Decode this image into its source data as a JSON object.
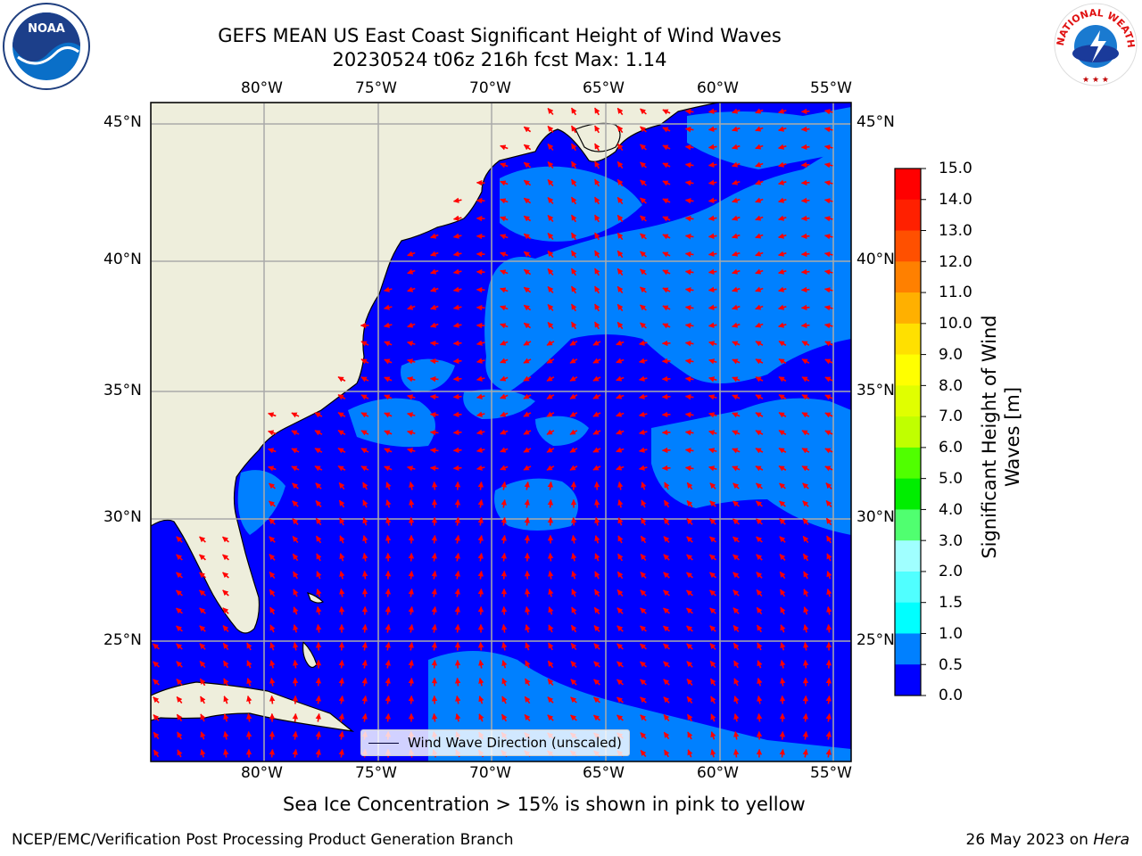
{
  "title": {
    "line1": "GEFS MEAN US East Coast Significant Height of Wind Waves",
    "line2": "20230524 t06z 216h fcst   Max: 1.14"
  },
  "map": {
    "lon_range": [
      -85,
      -54.2
    ],
    "lat_range": [
      20.5,
      46
    ],
    "lon_ticks": [
      "80°W",
      "75°W",
      "70°W",
      "65°W",
      "60°W",
      "55°W"
    ],
    "lat_ticks": [
      "45°N",
      "40°N",
      "35°N",
      "30°N",
      "25°N"
    ],
    "land_color": "#eeeedc",
    "ocean_low_color": "#0000ff",
    "ocean_mid_color": "#0080ff",
    "arrow_color": "#ff0000",
    "grid": true
  },
  "colorbar": {
    "label": "Significant Height of Wind Waves [m]",
    "label_line1": "Significant Height of Wind",
    "label_line2": "Waves [m]",
    "ticks": [
      "15.0",
      "14.0",
      "13.0",
      "12.0",
      "11.0",
      "10.0",
      "9.0",
      "8.0",
      "7.0",
      "6.0",
      "5.0",
      "4.0",
      "3.0",
      "2.0",
      "1.5",
      "1.0",
      "0.5",
      "0.0"
    ],
    "colors": [
      "#ff0000",
      "#ff2000",
      "#ff5000",
      "#ff8000",
      "#ffb000",
      "#ffe000",
      "#ffff00",
      "#e0ff00",
      "#c0ff00",
      "#50ff00",
      "#00ee00",
      "#50ff70",
      "#a0ffff",
      "#50ffff",
      "#00ffff",
      "#0080ff",
      "#0000ff"
    ]
  },
  "legend": {
    "label": "Wind Wave Direction (unscaled)"
  },
  "sea_ice_note": "Sea Ice Concentration > 15% is shown in pink to yellow",
  "footer": {
    "left": "NCEP/EMC/Verification Post Processing Product Generation Branch",
    "right_date": "26 May 2023 on",
    "right_host": "Hera"
  },
  "logos": {
    "left": "NOAA",
    "right": "NATIONAL WEATHER SERVICE"
  }
}
